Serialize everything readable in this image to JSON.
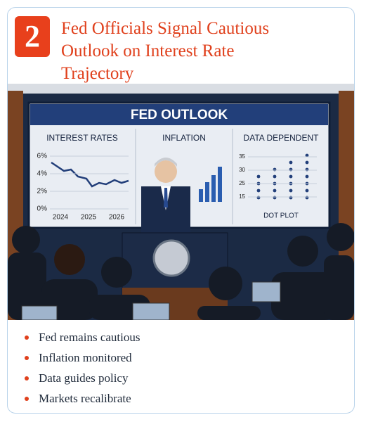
{
  "badge": "2",
  "title": "Fed Officials Signal Cautious Outlook on Interest Rate Trajectory",
  "screen": {
    "title": "FED OUTLOOK",
    "panels": [
      {
        "title": "INTEREST RATES",
        "y_labels": [
          "6%",
          "4%",
          "2%",
          "0%"
        ],
        "x_labels": [
          "2024",
          "2025",
          "2026"
        ]
      },
      {
        "title": "INFLATION"
      },
      {
        "title": "DATA DEPENDENT",
        "y_labels": [
          "35",
          "30",
          "25",
          "15"
        ],
        "caption": "DOT PLOT"
      }
    ]
  },
  "bullets": [
    "Fed remains cautious",
    "Inflation monitored",
    "Data guides policy",
    "Markets recalibrate"
  ]
}
